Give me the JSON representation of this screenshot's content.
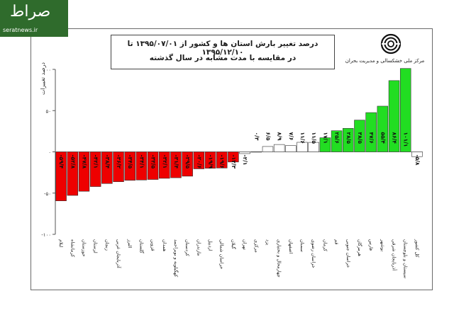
{
  "site": {
    "logo_text": "صراط",
    "url": "seratnews.ir"
  },
  "header": {
    "title_line1": "درصد تغییر بارش استان ها و کشور از ۱۳۹۵/۰۷/۰۱ تا ۱۳۹۵/۱۲/۱۰",
    "title_line2": "در مقایسه با مدت مشابه در سال گذشته",
    "org_name": "مرکز ملی خشکسالی و مدیریت بحران"
  },
  "colors": {
    "negative": "#ee0000",
    "positive": "#22dd22",
    "neutral": "#ffffff",
    "frame": "#6a6a6a"
  },
  "chart_data": {
    "type": "bar",
    "ylabel": "درصد تغییرات",
    "ylim": [
      -100,
      100
    ],
    "yticks": [
      -100,
      -50,
      0,
      50,
      100
    ],
    "ytick_labels": [
      "-۱۰۰",
      "-۵۰",
      "۰",
      "۵۰",
      "۱۰۰"
    ],
    "categories": [
      "ایلام",
      "کرمانشاه",
      "خوزستان",
      "لرستان",
      "زنجان",
      "آذربایجان غربی",
      "البرز",
      "گلستان",
      "قزوین",
      "همدان",
      "کهگیلویه و بویراحمد",
      "کردستان",
      "مازندران",
      "اردبیل",
      "خراسان شمالی",
      "گیلان",
      "تهران",
      "مرکزی",
      "یزد",
      "چهارمحال و بختیاری",
      "اصفهان",
      "سمنان",
      "خراسان رضوی",
      "کرمان",
      "قم",
      "خراسان جنوبی",
      "هرمزگان",
      "فارس",
      "بوشهر",
      "آذربایجان شرقی",
      "سیستان و بلوچستان",
      "کل کشور"
    ],
    "values": [
      -59.4,
      -52.8,
      -47.8,
      -42.1,
      -38.4,
      -36.2,
      -34.5,
      -34.1,
      -33.5,
      -32.1,
      -31.4,
      -29.5,
      -20.6,
      -19.9,
      -19.6,
      -12.3,
      -2.1,
      0.3,
      6.5,
      8.9,
      7.6,
      11.6,
      11.5,
      17.1,
      25.6,
      28.5,
      38.5,
      47.6,
      55.4,
      86.4,
      101.1,
      -5.8
    ],
    "value_labels": [
      "-۵۹/۴",
      "-۵۲/۸",
      "-۴۷/۸",
      "-۴۲/۱",
      "-۳۸/۴",
      "-۳۶/۲",
      "-۳۴/۵",
      "-۳۴/۱",
      "-۳۳/۵",
      "-۳۲/۱",
      "-۳۱/۴",
      "-۲۹/۵",
      "-۲۰/۶",
      "-۱۹/۹",
      "-۱۹/۶",
      "-۱۲/۳",
      "-۲/۱",
      "۰/۳",
      "۶/۵",
      "۸/۹",
      "۷/۶",
      "۱۱/۶",
      "۱۱/۵",
      "۱۷/۱",
      "۲۵/۶",
      "۲۸/۵",
      "۳۸/۵",
      "۴۷/۶",
      "۵۵/۴",
      "۸۶/۴",
      "۱۰۱/۱",
      "-۵/۸"
    ]
  }
}
